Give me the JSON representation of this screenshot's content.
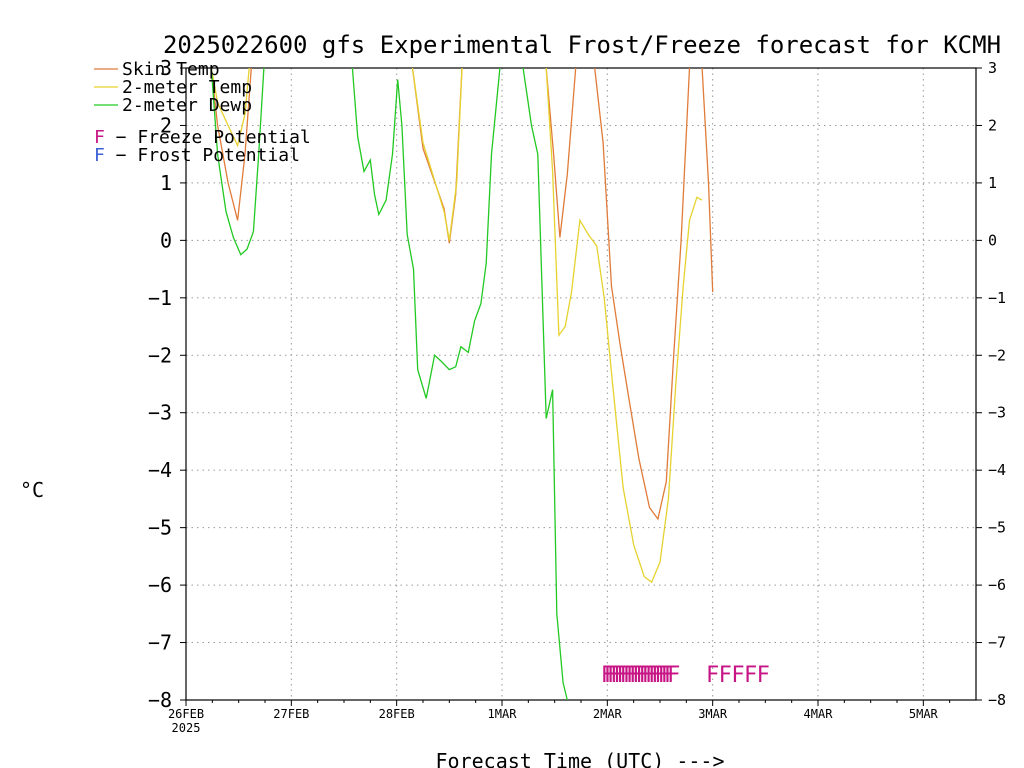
{
  "chart_data": {
    "type": "line",
    "title": "2025022600 gfs Experimental Frost/Freeze forecast for KCMH",
    "xlabel": "Forecast Time (UTC) --->",
    "ylabel": "°C",
    "ylim": [
      -8,
      3
    ],
    "yticks": [
      -8,
      -7,
      -6,
      -5,
      -4,
      -3,
      -2,
      -1,
      0,
      1,
      2,
      3
    ],
    "ytick_labels": [
      "−8",
      "−7",
      "−6",
      "−5",
      "−4",
      "−3",
      "−2",
      "−1",
      "0",
      "1",
      "2",
      "3"
    ],
    "xlim": [
      0,
      7.5
    ],
    "xticks": [
      {
        "x": 0,
        "label": "26FEB",
        "sublabel": "2025"
      },
      {
        "x": 1,
        "label": "27FEB",
        "sublabel": ""
      },
      {
        "x": 2,
        "label": "28FEB",
        "sublabel": ""
      },
      {
        "x": 3,
        "label": "1MAR",
        "sublabel": ""
      },
      {
        "x": 4,
        "label": "2MAR",
        "sublabel": ""
      },
      {
        "x": 5,
        "label": "3MAR",
        "sublabel": ""
      },
      {
        "x": 6,
        "label": "4MAR",
        "sublabel": ""
      },
      {
        "x": 7,
        "label": "5MAR",
        "sublabel": ""
      }
    ],
    "grid": true,
    "legend_position": "top-left",
    "series": [
      {
        "name": "Skin Temp",
        "color": "#e07b39",
        "segments": [
          [
            [
              0.24,
              3.0
            ],
            [
              0.3,
              2.0
            ],
            [
              0.4,
              1.0
            ],
            [
              0.49,
              0.35
            ],
            [
              0.56,
              1.5
            ],
            [
              0.62,
              3.0
            ]
          ],
          [
            [
              2.15,
              3.0
            ],
            [
              2.25,
              1.6
            ],
            [
              2.45,
              0.55
            ],
            [
              2.5,
              -0.05
            ],
            [
              2.56,
              0.8
            ],
            [
              2.62,
              3.0
            ]
          ],
          [
            [
              3.42,
              3.0
            ],
            [
              3.49,
              1.5
            ],
            [
              3.55,
              0.05
            ],
            [
              3.62,
              1.15
            ],
            [
              3.7,
              3.0
            ]
          ],
          [
            [
              3.88,
              3.0
            ],
            [
              3.96,
              1.7
            ],
            [
              4.04,
              -0.8
            ],
            [
              4.12,
              -1.8
            ],
            [
              4.2,
              -2.7
            ],
            [
              4.3,
              -3.8
            ],
            [
              4.4,
              -4.65
            ],
            [
              4.48,
              -4.85
            ],
            [
              4.56,
              -4.2
            ],
            [
              4.63,
              -2.0
            ],
            [
              4.7,
              0.0
            ],
            [
              4.78,
              3.0
            ]
          ],
          [
            [
              4.9,
              3.0
            ],
            [
              4.96,
              1.0
            ],
            [
              5.0,
              -0.9
            ]
          ]
        ]
      },
      {
        "name": "2-meter Temp",
        "color": "#e6d22e",
        "segments": [
          [
            [
              0.24,
              3.0
            ],
            [
              0.3,
              2.4
            ],
            [
              0.4,
              2.0
            ],
            [
              0.49,
              1.65
            ],
            [
              0.56,
              2.2
            ],
            [
              0.6,
              3.0
            ]
          ],
          [
            [
              2.15,
              3.0
            ],
            [
              2.25,
              1.7
            ],
            [
              2.45,
              0.5
            ],
            [
              2.5,
              0.0
            ],
            [
              2.57,
              1.0
            ],
            [
              2.62,
              3.0
            ]
          ],
          [
            [
              3.42,
              3.0
            ],
            [
              3.48,
              1.2
            ],
            [
              3.54,
              -1.65
            ],
            [
              3.6,
              -1.5
            ],
            [
              3.66,
              -0.9
            ],
            [
              3.74,
              0.35
            ],
            [
              3.82,
              0.1
            ],
            [
              3.9,
              -0.1
            ],
            [
              3.97,
              -1.0
            ],
            [
              4.05,
              -2.5
            ],
            [
              4.15,
              -4.3
            ],
            [
              4.25,
              -5.3
            ],
            [
              4.35,
              -5.85
            ],
            [
              4.42,
              -5.95
            ],
            [
              4.5,
              -5.6
            ],
            [
              4.58,
              -4.5
            ],
            [
              4.65,
              -2.5
            ],
            [
              4.72,
              -0.8
            ],
            [
              4.78,
              0.35
            ],
            [
              4.85,
              0.75
            ],
            [
              4.9,
              0.7
            ]
          ]
        ]
      },
      {
        "name": "2-meter Dewp",
        "color": "#22c922",
        "segments": [
          [
            [
              0.24,
              3.0
            ],
            [
              0.3,
              1.5
            ],
            [
              0.38,
              0.5
            ],
            [
              0.45,
              0.05
            ],
            [
              0.52,
              -0.25
            ],
            [
              0.58,
              -0.15
            ],
            [
              0.64,
              0.15
            ],
            [
              0.69,
              1.5
            ],
            [
              0.74,
              3.0
            ]
          ],
          [
            [
              1.58,
              3.0
            ],
            [
              1.63,
              1.8
            ],
            [
              1.69,
              1.2
            ],
            [
              1.75,
              1.4
            ],
            [
              1.79,
              0.8
            ],
            [
              1.83,
              0.45
            ],
            [
              1.9,
              0.7
            ],
            [
              1.96,
              1.5
            ],
            [
              2.01,
              2.8
            ],
            [
              2.05,
              2.0
            ],
            [
              2.1,
              0.1
            ],
            [
              2.16,
              -0.5
            ],
            [
              2.2,
              -2.25
            ],
            [
              2.28,
              -2.75
            ],
            [
              2.36,
              -2.0
            ],
            [
              2.42,
              -2.1
            ],
            [
              2.5,
              -2.25
            ],
            [
              2.56,
              -2.2
            ],
            [
              2.61,
              -1.85
            ],
            [
              2.68,
              -1.95
            ],
            [
              2.74,
              -1.4
            ],
            [
              2.8,
              -1.1
            ],
            [
              2.85,
              -0.4
            ],
            [
              2.9,
              1.5
            ],
            [
              2.98,
              3.0
            ]
          ],
          [
            [
              3.2,
              3.0
            ],
            [
              3.28,
              2.0
            ],
            [
              3.34,
              1.5
            ],
            [
              3.42,
              -3.1
            ],
            [
              3.48,
              -2.6
            ],
            [
              3.52,
              -6.5
            ],
            [
              3.58,
              -7.7
            ],
            [
              3.62,
              -8.0
            ]
          ]
        ]
      }
    ],
    "freeze_potential": {
      "label": "F − Freeze Potential",
      "color": "#c71585",
      "y": -7.55,
      "x_positions": [
        4.0,
        4.03,
        4.06,
        4.09,
        4.12,
        4.15,
        4.18,
        4.21,
        4.24,
        4.27,
        4.3,
        4.33,
        4.36,
        4.39,
        4.42,
        4.45,
        4.48,
        4.51,
        4.54,
        4.57,
        4.6,
        4.63,
        5.0,
        5.12,
        5.24,
        5.36,
        5.48
      ],
      "mark": "F"
    },
    "frost_potential": {
      "label": "F − Frost Potential",
      "color": "#3a5fd6"
    }
  }
}
